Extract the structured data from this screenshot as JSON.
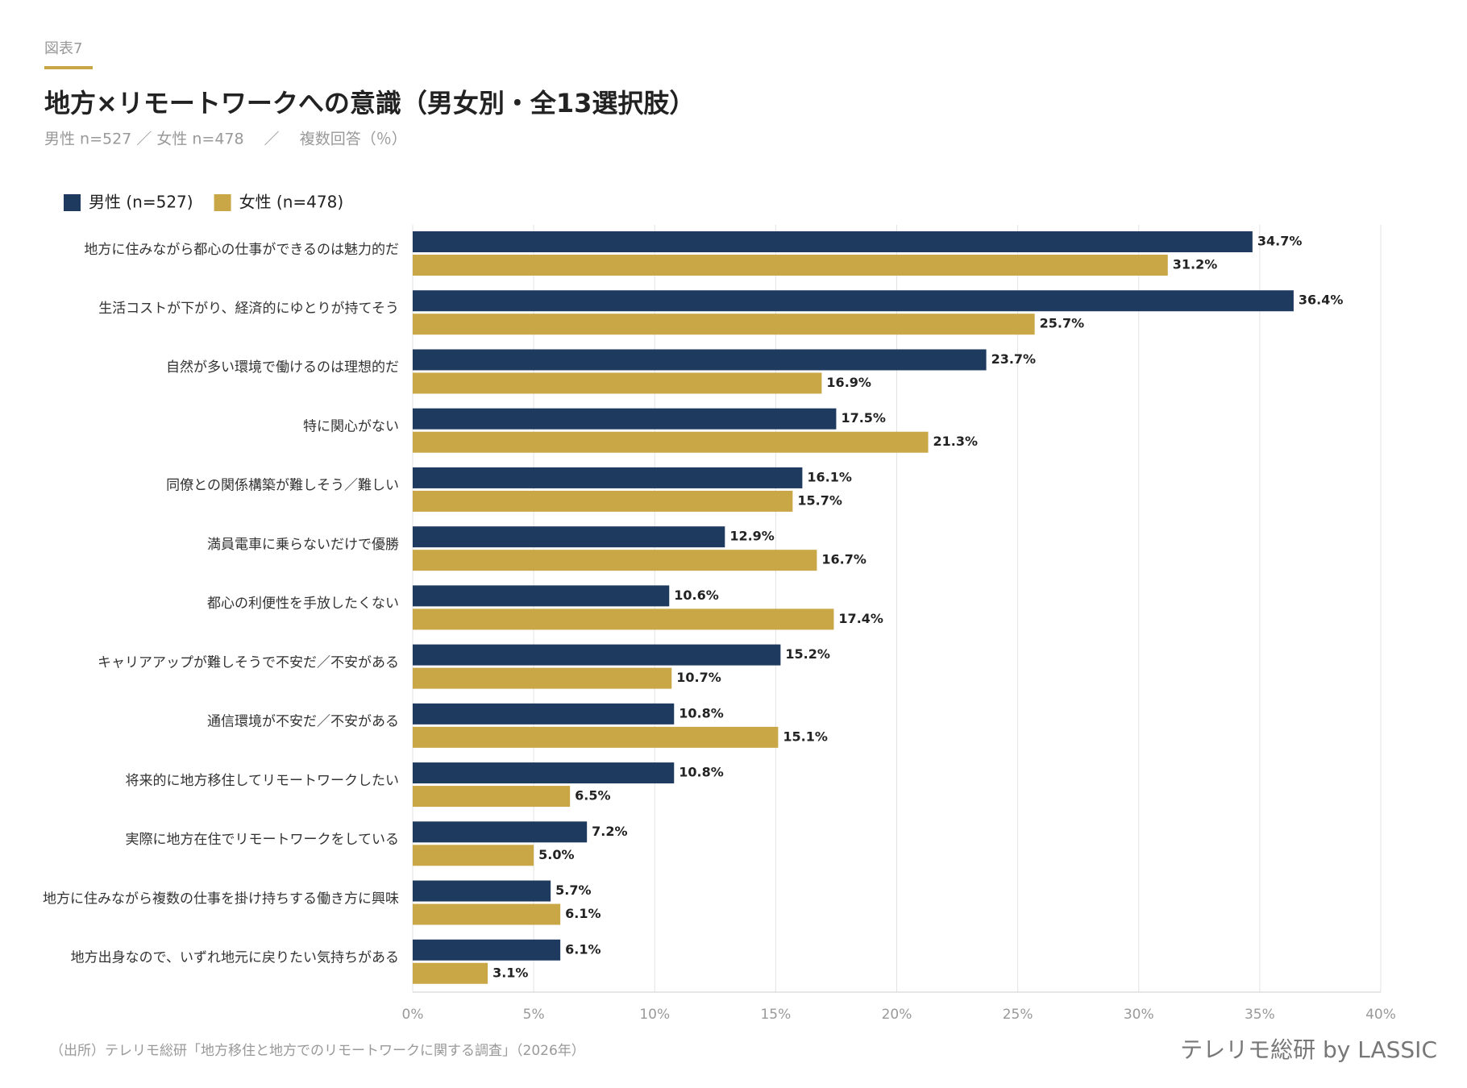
{
  "chart_data": {
    "type": "hbar",
    "label": "図表7",
    "title": "地方×リモートワークへの意識（男女別・全13選択肢）",
    "subtitle": "男性 n=527 ／ 女性 n=478 　／　 複数回答（％）",
    "categories": [
      "地方に住みながら都心の仕事ができるのは魅力的だ",
      "生活コストが下がり、経済的にゆとりが持てそう",
      "自然が多い環境で働けるのは理想的だ",
      "特に関心がない",
      "同僚との関係構築が難しそう／難しい",
      "満員電車に乗らないだけで優勝",
      "都心の利便性を手放したくない",
      "キャリアアップが難しそうで不安だ／不安がある",
      "通信環境が不安だ／不安がある",
      "将来的に地方移住してリモートワークしたい",
      "実際に地方在住でリモートワークをしている",
      "地方に住みながら複数の仕事を掛け持ちする働き方に興味",
      "地方出身なので、いずれ地元に戻りたい気持ちがある"
    ],
    "series": [
      {
        "name": "男性 (n=527)",
        "color": "#1f3a5f",
        "values": [
          34.7,
          36.4,
          23.7,
          17.5,
          16.1,
          12.9,
          10.6,
          15.2,
          10.8,
          10.8,
          7.2,
          5.7,
          6.1
        ],
        "value_labels": [
          "34.7%",
          "36.4%",
          "23.7%",
          "17.5%",
          "16.1%",
          "12.9%",
          "10.6%",
          "15.2%",
          "10.8%",
          "10.8%",
          "7.2%",
          "5.7%",
          "6.1%"
        ]
      },
      {
        "name": "女性 (n=478)",
        "color": "#c9a646",
        "values": [
          31.2,
          25.7,
          16.9,
          21.3,
          15.7,
          16.7,
          17.4,
          10.7,
          15.1,
          6.5,
          5.0,
          6.1,
          3.1
        ],
        "value_labels": [
          "31.2%",
          "25.7%",
          "16.9%",
          "21.3%",
          "15.7%",
          "16.7%",
          "17.4%",
          "10.7%",
          "15.1%",
          "6.5%",
          "5.0%",
          "6.1%",
          "3.1%"
        ]
      }
    ],
    "xlim": [
      0,
      40
    ],
    "xticks": [
      {
        "value": 0,
        "label": "0%"
      },
      {
        "value": 5,
        "label": "5%"
      },
      {
        "value": 10,
        "label": "10%"
      },
      {
        "value": 15,
        "label": "15%"
      },
      {
        "value": 20,
        "label": "20%"
      },
      {
        "value": 25,
        "label": "25%"
      },
      {
        "value": 30,
        "label": "30%"
      },
      {
        "value": 35,
        "label": "35%"
      },
      {
        "value": 40,
        "label": "40%"
      }
    ],
    "grid": true,
    "source": "（出所）テレリモ総研「地方移住と地方でのリモートワークに関する調査」（2026年）",
    "brand": "テレリモ総研 by LASSIC"
  }
}
